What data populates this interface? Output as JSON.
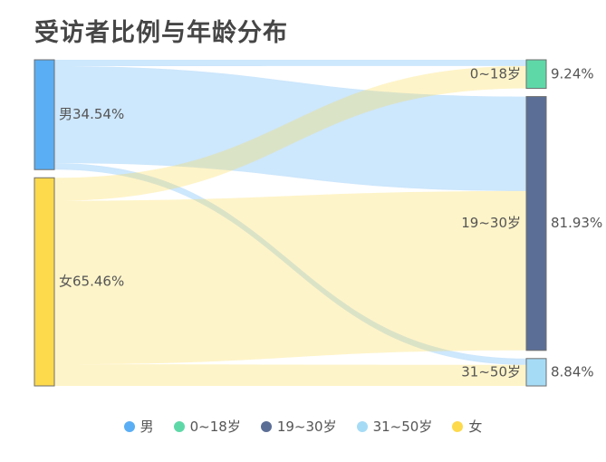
{
  "chart_data": {
    "type": "sankey",
    "title": "受访者比例与年龄分布",
    "nodes": [
      {
        "id": "male",
        "label": "男",
        "percent": "34.54%",
        "value": 34.54,
        "side": "left"
      },
      {
        "id": "female",
        "label": "女",
        "percent": "65.46%",
        "value": 65.46,
        "side": "left"
      },
      {
        "id": "age0",
        "label": "0~18岁",
        "percent": "9.24%",
        "value": 9.24,
        "side": "right"
      },
      {
        "id": "age19",
        "label": "19~30岁",
        "percent": "81.93%",
        "value": 81.93,
        "side": "right"
      },
      {
        "id": "age31",
        "label": "31~50岁",
        "percent": "8.84%",
        "value": 8.84,
        "side": "right"
      }
    ],
    "links": [
      {
        "source": "male",
        "target": "age0",
        "value": 2.0
      },
      {
        "source": "male",
        "target": "age19",
        "value": 30.5
      },
      {
        "source": "male",
        "target": "age31",
        "value": 2.04
      },
      {
        "source": "female",
        "target": "age0",
        "value": 7.24
      },
      {
        "source": "female",
        "target": "age19",
        "value": 51.43
      },
      {
        "source": "female",
        "target": "age31",
        "value": 6.8
      }
    ],
    "legend": [
      "男",
      "0~18岁",
      "19~30岁",
      "31~50岁",
      "女"
    ],
    "legend_position": "bottom"
  },
  "colors": {
    "男": "#5aaef4",
    "0~18岁": "#5fd8a8",
    "19~30岁": "#5b6e96",
    "31~50岁": "#a6dbf6",
    "女": "#fdd94c"
  }
}
